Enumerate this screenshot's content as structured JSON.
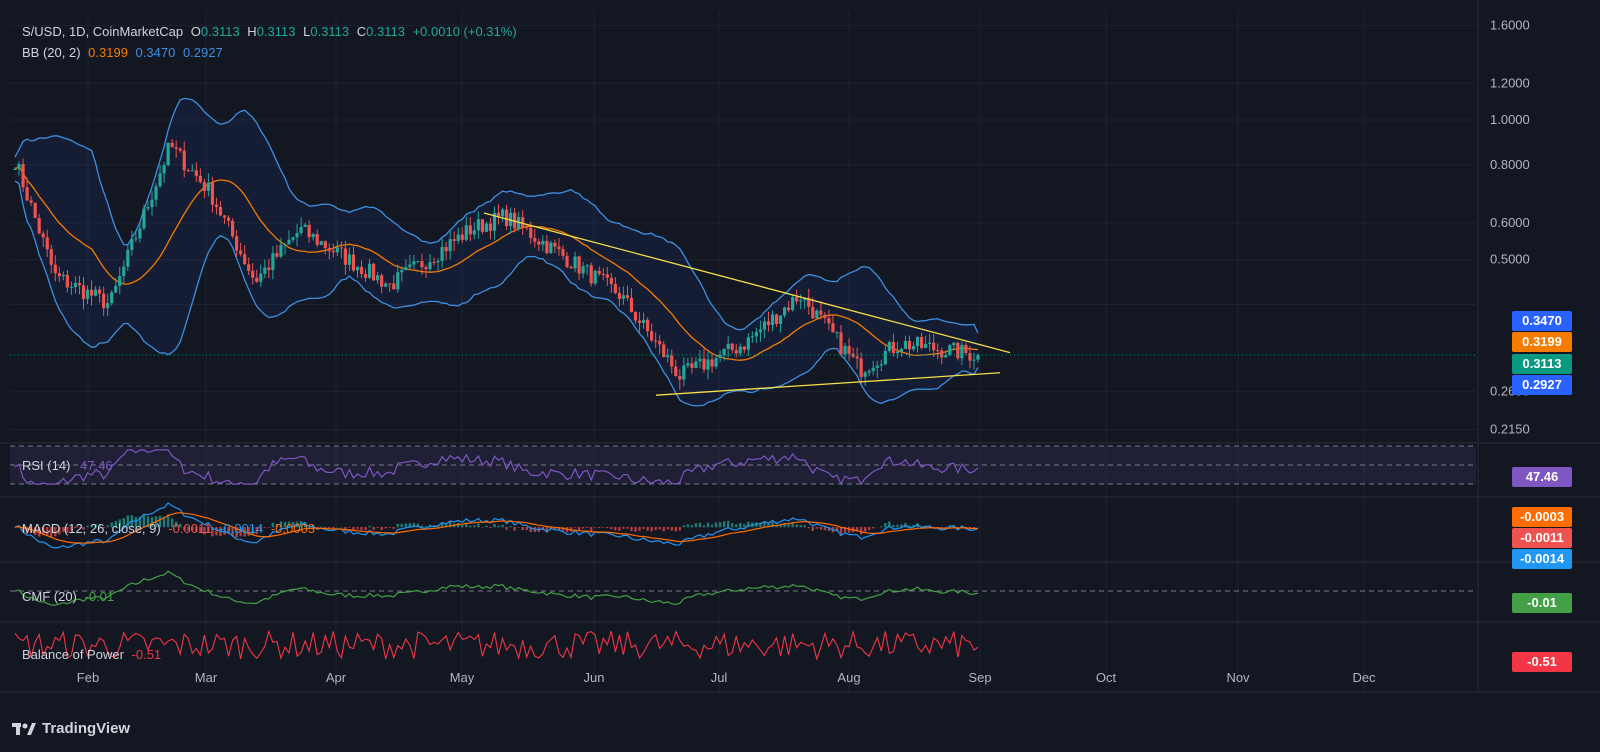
{
  "header": {
    "symbol": "S/USD, 1D, CoinMarketCap",
    "o_label": "O",
    "o_val": "0.3113",
    "h_label": "H",
    "h_val": "0.3113",
    "l_label": "L",
    "l_val": "0.3113",
    "c_label": "C",
    "c_val": "0.3113",
    "change": "+0.0010 (+0.31%)"
  },
  "bb_legend": {
    "label": "BB (20, 2)",
    "basis": "0.3199",
    "upper": "0.3470",
    "lower": "0.2927"
  },
  "rsi_legend": {
    "label": "RSI (14)",
    "value": "47.46"
  },
  "macd_legend": {
    "label": "MACD (12, 26, close, 9)",
    "hist": "-0.0011",
    "macd": "-0.0014",
    "signal": "-0.0003"
  },
  "cmf_legend": {
    "label": "CMF (20)",
    "value": "-0.01"
  },
  "bop_legend": {
    "label": "Balance of Power",
    "value": "-0.51"
  },
  "badges": {
    "bb_upper": "0.3470",
    "bb_basis": "0.3199",
    "close": "0.3113",
    "bb_lower": "0.2927",
    "rsi": "47.46",
    "macd_signal": "-0.0003",
    "macd_hist": "-0.0011",
    "macd_line": "-0.0014",
    "cmf": "-0.01",
    "bop": "-0.51"
  },
  "brand": "TradingView",
  "colors": {
    "background": "#131722",
    "up": "#26a69a",
    "down": "#ef5350",
    "bb_band": "#2962ff",
    "bb_line": "#3d8fe0",
    "bb_basis": "#f57c00",
    "trendline": "#f5dd4b",
    "rsi": "#7e57c2",
    "macd": "#2196f3",
    "signal": "#ff6d00",
    "cmf": "#43a047",
    "bop": "#f23645",
    "close_badge": "#089981"
  },
  "chart_data": {
    "type": "candlestick",
    "title": "S/USD, 1D, CoinMarketCap",
    "y_scale": "log",
    "y_ticks": [
      "0.2150",
      "0.2600",
      "0.3113",
      "0.3199",
      "0.3470",
      "0.5000",
      "0.6000",
      "0.8000",
      "1.0000",
      "1.2000",
      "1.6000"
    ],
    "x_ticks": [
      "Feb",
      "Mar",
      "Apr",
      "May",
      "Jun",
      "Jul",
      "Aug",
      "Sep",
      "Oct",
      "Nov",
      "Dec"
    ],
    "close_series_anchors": [
      {
        "date": "Jan",
        "value": 0.82
      },
      {
        "date": "Feb",
        "value": 0.46
      },
      {
        "date": "Feb",
        "value": 0.4
      },
      {
        "date": "Mar",
        "value": 0.88
      },
      {
        "date": "Mar",
        "value": 0.7
      },
      {
        "date": "Mar",
        "value": 0.45
      },
      {
        "date": "Apr",
        "value": 0.58
      },
      {
        "date": "Apr",
        "value": 0.44
      },
      {
        "date": "May",
        "value": 0.58
      },
      {
        "date": "May",
        "value": 0.62
      },
      {
        "date": "Jun",
        "value": 0.42
      },
      {
        "date": "Jun",
        "value": 0.28
      },
      {
        "date": "Jul",
        "value": 0.33
      },
      {
        "date": "Jul",
        "value": 0.42
      },
      {
        "date": "Aug",
        "value": 0.29
      },
      {
        "date": "Aug",
        "value": 0.33
      },
      {
        "date": "Sep",
        "value": 0.3113
      }
    ],
    "bollinger": {
      "period": 20,
      "mult": 2,
      "basis": 0.3199,
      "upper": 0.347,
      "lower": 0.2927
    },
    "trendlines": [
      {
        "from_date": "May",
        "from_value": 0.63,
        "to_date": "Sep",
        "to_value": 0.315
      },
      {
        "from_date": "Jun",
        "from_value": 0.255,
        "to_date": "Sep",
        "to_value": 0.285
      }
    ],
    "indicators": {
      "rsi": {
        "period": 14,
        "value": 47.46
      },
      "macd": {
        "fast": 12,
        "slow": 26,
        "signal": 9,
        "macd": -0.0014,
        "signal_value": -0.0003,
        "histogram": -0.0011
      },
      "cmf": {
        "period": 20,
        "value": -0.01
      },
      "balance_of_power": {
        "value": -0.51
      }
    }
  }
}
